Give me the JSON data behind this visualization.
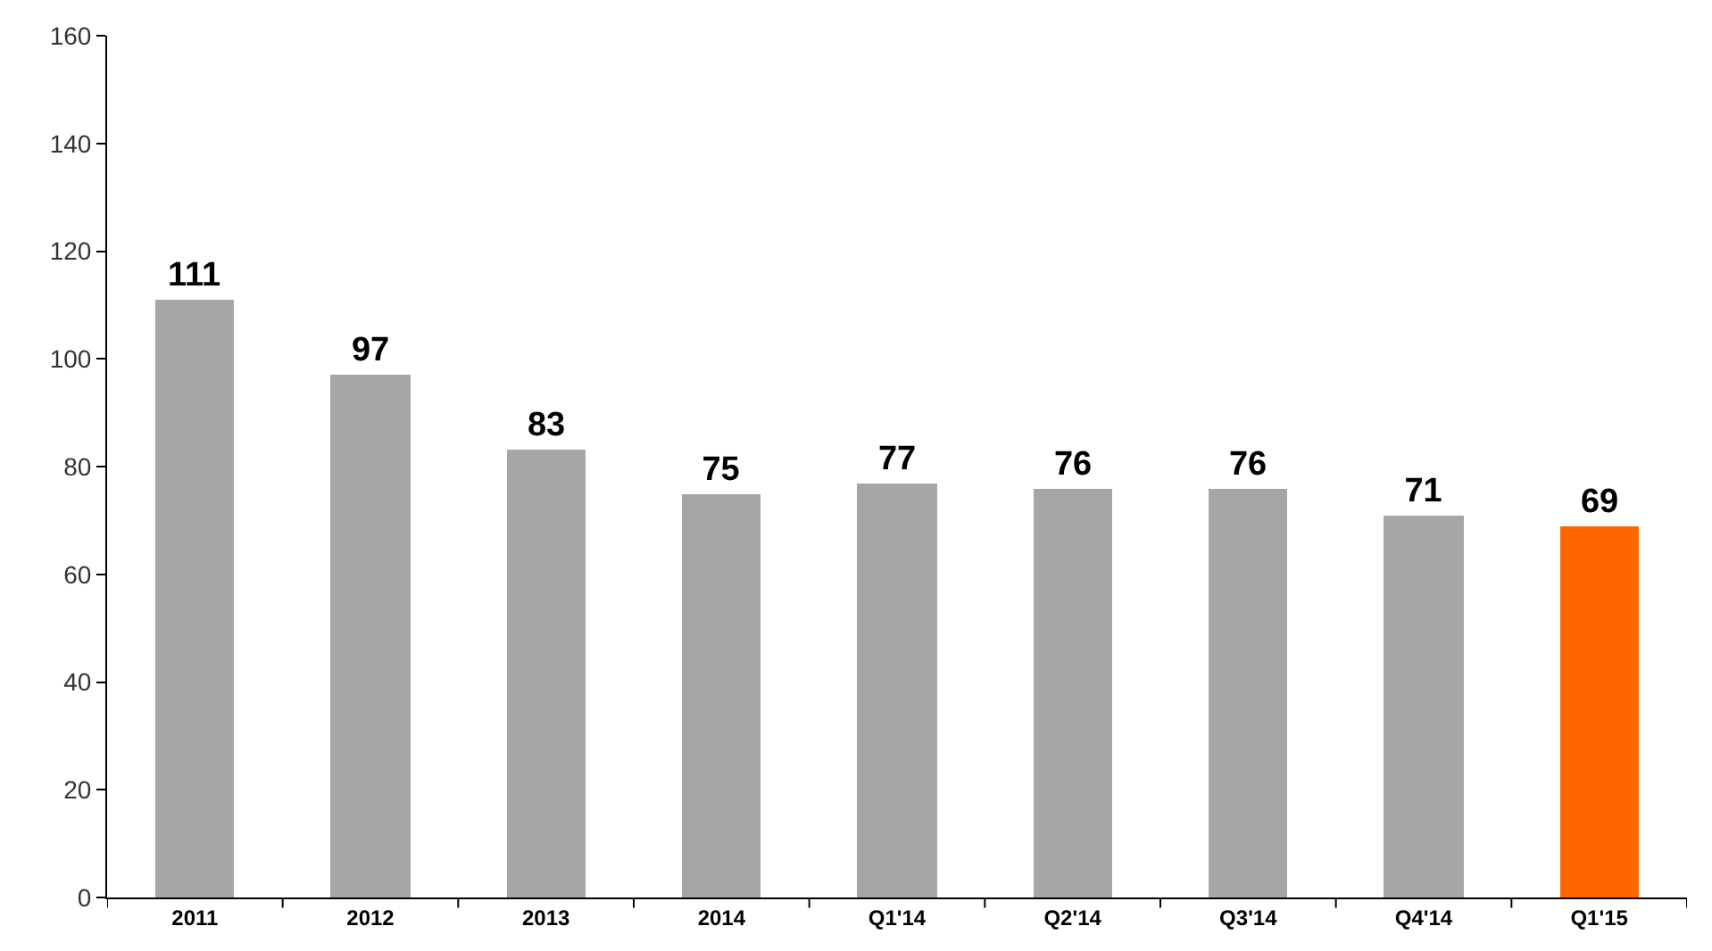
{
  "chart_data": {
    "type": "bar",
    "categories": [
      "2011",
      "2012",
      "2013",
      "2014",
      "Q1'14",
      "Q2'14",
      "Q3'14",
      "Q4'14",
      "Q1'15"
    ],
    "values": [
      111,
      97,
      83,
      75,
      77,
      76,
      76,
      71,
      69
    ],
    "colors": [
      "#a6a6a6",
      "#a6a6a6",
      "#a6a6a6",
      "#a6a6a6",
      "#a6a6a6",
      "#a6a6a6",
      "#a6a6a6",
      "#a6a6a6",
      "#ff6600"
    ],
    "data_labels": true,
    "ylim": [
      0,
      160
    ],
    "yticks": [
      0,
      20,
      40,
      60,
      80,
      100,
      120,
      140,
      160
    ],
    "legend": false
  }
}
